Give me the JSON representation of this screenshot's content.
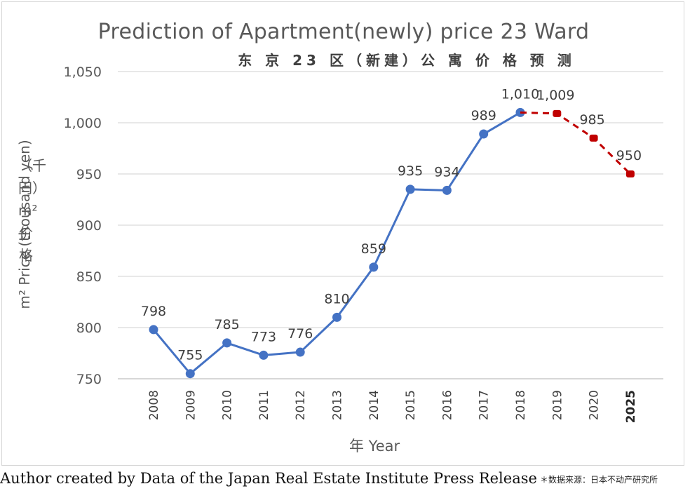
{
  "chart_data": {
    "type": "line",
    "title": "Prediction of Apartment(newly) price 23 Ward",
    "subtitle": "东 京 23 区（新建）公 寓 价 格 预 测",
    "ylabel": "m² Price (thousand yen)",
    "ylabel_cn": "（千円）m²价格",
    "xlabel": "年 Year",
    "ylim": [
      750,
      1050
    ],
    "yticks": [
      "750",
      "800",
      "850",
      "900",
      "950",
      "1,000",
      "1,050"
    ],
    "ytick_values": [
      750,
      800,
      850,
      900,
      950,
      1000,
      1050
    ],
    "grid": true,
    "categories": [
      "2008",
      "2009",
      "2010",
      "2011",
      "2012",
      "2013",
      "2014",
      "2015",
      "2016",
      "2017",
      "2018",
      "2019",
      "2020",
      "2025"
    ],
    "series": [
      {
        "style": "solid",
        "color": "#4472c4",
        "x": [
          "2008",
          "2009",
          "2010",
          "2011",
          "2012",
          "2013",
          "2014",
          "2015",
          "2016",
          "2017",
          "2018"
        ],
        "values": [
          798,
          755,
          785,
          773,
          776,
          810,
          859,
          935,
          934,
          989,
          1010
        ],
        "labels": [
          "798",
          "755",
          "785",
          "773",
          "776",
          "810",
          "859",
          "935",
          "934",
          "989",
          "1,010"
        ]
      },
      {
        "style": "dashed",
        "color": "#c00000",
        "x": [
          "2018",
          "2019",
          "2020",
          "2025"
        ],
        "values": [
          1010,
          1009,
          985,
          950
        ],
        "labels": [
          "",
          "1,009",
          "985",
          "950"
        ]
      }
    ]
  },
  "source": "Author created by Data of the Japan Real Estate Institute Press Release",
  "source_cn": "＊数据来源：日本不动产研究所"
}
